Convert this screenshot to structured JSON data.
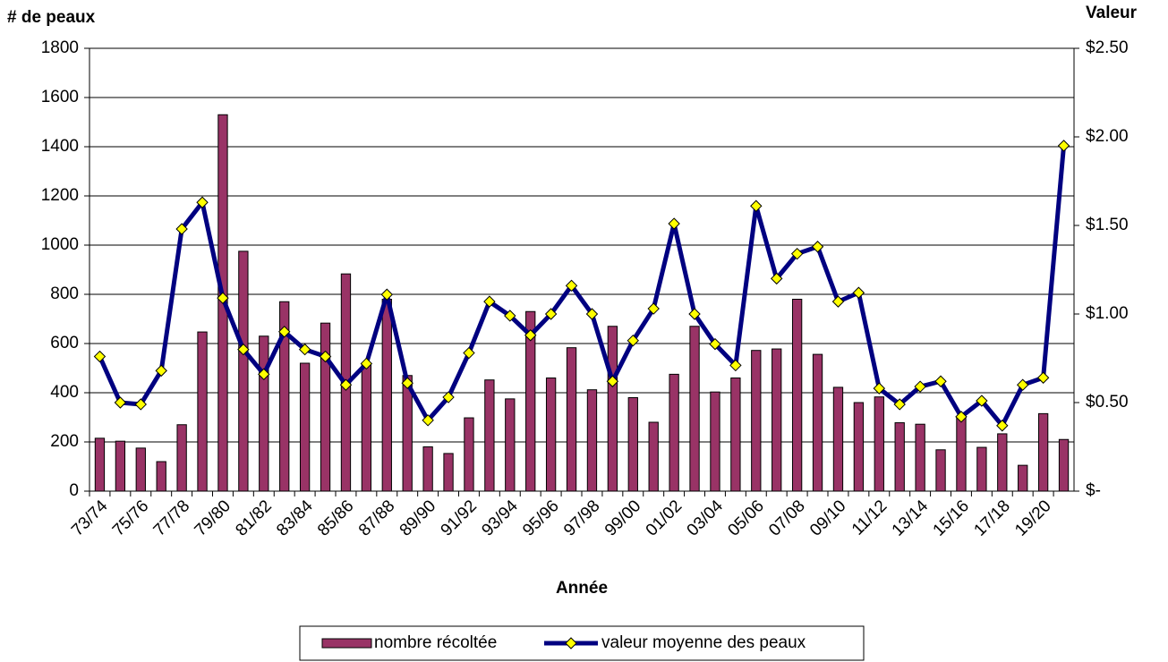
{
  "chart_data": {
    "type": "bar_line",
    "y_label": "# de peaux",
    "y2_label": "Valeur",
    "x_label": "Année",
    "categories": [
      "73/74",
      null,
      "75/76",
      null,
      "77/78",
      null,
      "79/80",
      null,
      "81/82",
      null,
      "83/84",
      null,
      "85/86",
      null,
      "87/88",
      null,
      "89/90",
      null,
      "91/92",
      null,
      "93/94",
      null,
      "95/96",
      null,
      "97/98",
      null,
      "99/00",
      null,
      "01/02",
      null,
      "03/04",
      null,
      "05/06",
      null,
      "07/08",
      null,
      "09/10",
      null,
      "11/12",
      null,
      "13/14",
      null,
      "15/16",
      null,
      "17/18",
      null,
      "19/20",
      null
    ],
    "series": [
      {
        "name": "nombre récoltée",
        "type": "bar",
        "color": "#993366",
        "values": [
          215,
          203,
          175,
          120,
          270,
          647,
          1530,
          975,
          630,
          770,
          520,
          683,
          883,
          520,
          780,
          470,
          180,
          153,
          298,
          452,
          375,
          730,
          460,
          583,
          412,
          670,
          380,
          280,
          475,
          670,
          403,
          460,
          572,
          578,
          780,
          556,
          422,
          360,
          383,
          278,
          272,
          168,
          300,
          178,
          233,
          105,
          315,
          210
        ]
      },
      {
        "name": "valeur moyenne des peaux",
        "type": "line",
        "axis": "y2",
        "color": "#000080",
        "marker_color": "#ffff00",
        "values": [
          0.76,
          0.5,
          0.49,
          0.68,
          1.48,
          1.63,
          1.09,
          0.8,
          0.66,
          0.9,
          0.8,
          0.76,
          0.6,
          0.72,
          1.11,
          0.61,
          0.4,
          0.53,
          0.78,
          1.07,
          0.99,
          0.88,
          1.0,
          1.16,
          1.0,
          0.62,
          0.85,
          1.03,
          1.51,
          1.0,
          0.83,
          0.71,
          1.61,
          1.2,
          1.34,
          1.38,
          1.07,
          1.12,
          0.58,
          0.49,
          0.59,
          0.62,
          0.42,
          0.51,
          0.37,
          0.6,
          0.64,
          1.95
        ]
      }
    ],
    "ylim": [
      0,
      1800
    ],
    "yticks": [
      0,
      200,
      400,
      600,
      800,
      1000,
      1200,
      1400,
      1600,
      1800
    ],
    "y2lim": [
      0,
      2.5
    ],
    "y2ticks": [
      {
        "value": 0,
        "label": "$-"
      },
      {
        "value": 0.5,
        "label": "$0.50"
      },
      {
        "value": 1.0,
        "label": "$1.00"
      },
      {
        "value": 1.5,
        "label": "$1.50"
      },
      {
        "value": 2.0,
        "label": "$2.00"
      },
      {
        "value": 2.5,
        "label": "$2.50"
      }
    ],
    "grid": true,
    "legend": "bottom"
  }
}
